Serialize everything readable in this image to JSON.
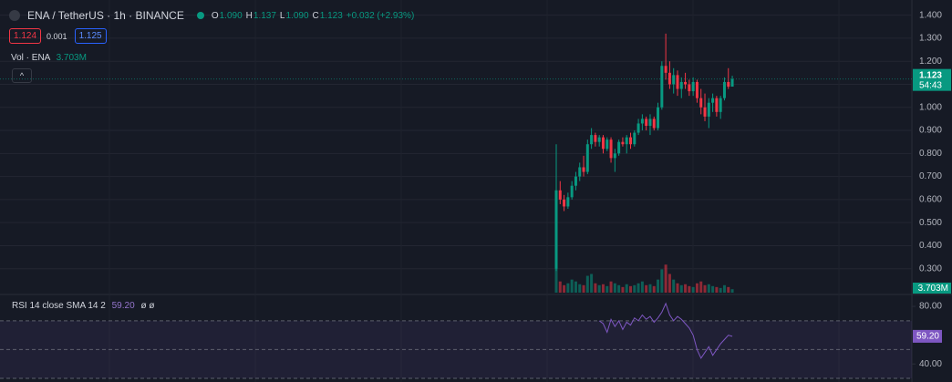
{
  "chart_data": {
    "type": "candlestick",
    "title": "ENA / TetherUS · 1h · BINANCE",
    "ohlc_legend": [
      {
        "key": "O",
        "text": "1.090"
      },
      {
        "key": "H",
        "text": "1.137"
      },
      {
        "key": "L",
        "text": "1.090"
      },
      {
        "key": "C",
        "text": "1.123"
      }
    ],
    "change": "+0.032 (+2.93%)",
    "bid": "1.124",
    "spread": "0.001",
    "ask": "1.125",
    "volume_title": "Vol · ENA",
    "volume_last": "3.703M",
    "last_price_label": "1.123",
    "countdown": "54:43",
    "up_color": "#089981",
    "down_color": "#f23645",
    "open": [
      0.3,
      0.64,
      0.6,
      0.57,
      0.61,
      0.66,
      0.7,
      0.74,
      0.72,
      0.84,
      0.88,
      0.85,
      0.87,
      0.82,
      0.86,
      0.78,
      0.8,
      0.85,
      0.84,
      0.87,
      0.84,
      0.89,
      0.93,
      0.95,
      0.92,
      0.95,
      0.91,
      1.0,
      1.18,
      1.15,
      1.1,
      1.14,
      1.08,
      1.11,
      1.1,
      1.07,
      1.11,
      1.04,
      1.0,
      0.96,
      1.02,
      1.04,
      0.98,
      1.04,
      1.11,
      1.09
    ],
    "high": [
      0.84,
      0.68,
      0.62,
      0.63,
      0.68,
      0.72,
      0.76,
      0.79,
      0.86,
      0.91,
      0.89,
      0.88,
      0.88,
      0.87,
      0.87,
      0.82,
      0.86,
      0.87,
      0.88,
      0.89,
      0.9,
      0.95,
      0.97,
      0.96,
      0.97,
      0.96,
      1.02,
      1.2,
      1.32,
      1.2,
      1.17,
      1.16,
      1.13,
      1.15,
      1.12,
      1.13,
      1.12,
      1.08,
      1.06,
      1.04,
      1.06,
      1.05,
      1.05,
      1.13,
      1.17,
      1.137
    ],
    "low": [
      0.29,
      0.58,
      0.55,
      0.56,
      0.6,
      0.64,
      0.68,
      0.7,
      0.71,
      0.82,
      0.83,
      0.83,
      0.8,
      0.81,
      0.76,
      0.72,
      0.79,
      0.83,
      0.8,
      0.82,
      0.83,
      0.88,
      0.9,
      0.9,
      0.88,
      0.9,
      0.9,
      0.99,
      1.12,
      1.08,
      1.06,
      1.05,
      1.04,
      1.08,
      1.05,
      1.05,
      1.02,
      0.97,
      0.94,
      0.91,
      0.98,
      0.96,
      0.95,
      1.03,
      1.08,
      1.09
    ],
    "close": [
      0.64,
      0.6,
      0.57,
      0.61,
      0.66,
      0.7,
      0.74,
      0.72,
      0.84,
      0.88,
      0.85,
      0.87,
      0.82,
      0.86,
      0.78,
      0.8,
      0.85,
      0.84,
      0.87,
      0.84,
      0.89,
      0.93,
      0.95,
      0.92,
      0.95,
      0.91,
      1.0,
      1.18,
      1.15,
      1.1,
      1.14,
      1.08,
      1.11,
      1.1,
      1.07,
      1.11,
      1.04,
      1.0,
      0.96,
      1.02,
      1.04,
      0.98,
      1.04,
      1.11,
      1.09,
      1.123
    ],
    "volume": [
      30000000,
      12000000,
      8000000,
      10000000,
      14000000,
      12000000,
      9000000,
      8000000,
      18000000,
      20000000,
      10000000,
      8000000,
      9000000,
      7000000,
      12000000,
      10000000,
      8000000,
      6000000,
      9000000,
      7000000,
      8000000,
      10000000,
      12000000,
      8000000,
      9000000,
      7000000,
      14000000,
      25000000,
      30000000,
      20000000,
      14000000,
      10000000,
      8000000,
      9000000,
      7000000,
      6000000,
      10000000,
      12000000,
      8000000,
      9000000,
      7000000,
      6000000,
      5000000,
      8000000,
      6000000,
      3703000
    ],
    "volume_ylim": [
      0,
      40000000
    ],
    "ylim": [
      0.2,
      1.45
    ],
    "yticks": [
      {
        "value": 1.4,
        "label": "1.400"
      },
      {
        "value": 1.3,
        "label": "1.300"
      },
      {
        "value": 1.2,
        "label": "1.200"
      },
      {
        "value": 1.1,
        "label": "1.100"
      },
      {
        "value": 1.0,
        "label": "1.000"
      },
      {
        "value": 0.9,
        "label": "0.900"
      },
      {
        "value": 0.8,
        "label": "0.800"
      },
      {
        "value": 0.7,
        "label": "0.700"
      },
      {
        "value": 0.6,
        "label": "0.600"
      },
      {
        "value": 0.5,
        "label": "0.500"
      },
      {
        "value": 0.4,
        "label": "0.400"
      },
      {
        "value": 0.3,
        "label": "0.300"
      }
    ],
    "grid": true,
    "rsi": {
      "title": "RSI 14 close SMA 14 2",
      "value_label": "59.20",
      "extra": "ø ø",
      "color": "#7e57c2",
      "values": [
        null,
        null,
        null,
        null,
        null,
        null,
        null,
        null,
        null,
        null,
        null,
        70,
        68,
        62,
        71,
        66,
        70,
        64,
        69,
        67,
        72,
        70,
        74,
        71,
        73,
        69,
        72,
        76,
        82,
        74,
        70,
        73,
        71,
        68,
        65,
        60,
        50,
        44,
        48,
        52,
        46,
        50,
        54,
        57,
        60,
        59.2
      ],
      "ylim": [
        30,
        87
      ],
      "yticks": [
        {
          "value": 80,
          "label": "80.00"
        },
        {
          "value": 40,
          "label": "40.00"
        }
      ],
      "bands": [
        70,
        50,
        30
      ]
    }
  }
}
